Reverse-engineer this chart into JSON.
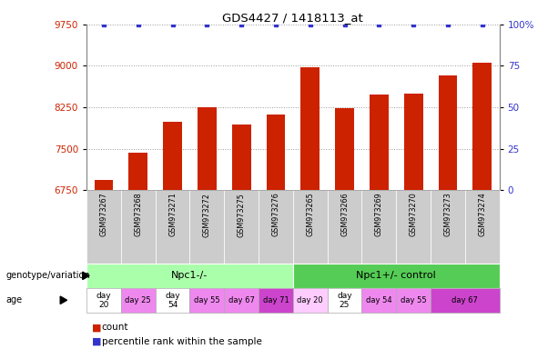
{
  "title": "GDS4427 / 1418113_at",
  "samples": [
    "GSM973267",
    "GSM973268",
    "GSM973271",
    "GSM973272",
    "GSM973275",
    "GSM973276",
    "GSM973265",
    "GSM973266",
    "GSM973269",
    "GSM973270",
    "GSM973273",
    "GSM973274"
  ],
  "counts": [
    6930,
    7430,
    7980,
    8250,
    7940,
    8120,
    8980,
    8230,
    8480,
    8490,
    8830,
    9050
  ],
  "percentile_ranks": [
    100,
    100,
    100,
    100,
    100,
    100,
    100,
    100,
    100,
    100,
    100,
    100
  ],
  "ylim_left": [
    6750,
    9750
  ],
  "ylim_right": [
    0,
    100
  ],
  "yticks_left": [
    6750,
    7500,
    8250,
    9000,
    9750
  ],
  "yticks_right": [
    0,
    25,
    50,
    75,
    100
  ],
  "ytick_labels_right": [
    "0",
    "25",
    "50",
    "75",
    "100%"
  ],
  "bar_color": "#cc2200",
  "percentile_color": "#3333cc",
  "bar_width": 0.55,
  "genotype_groups": [
    {
      "label": "Npc1-/-",
      "start": 0,
      "end": 6,
      "color": "#aaffaa"
    },
    {
      "label": "Npc1+/- control",
      "start": 6,
      "end": 12,
      "color": "#55cc55"
    }
  ],
  "xlabel_left": "genotype/variation",
  "xlabel_age": "age",
  "grid_color": "#999999",
  "tick_label_color_left": "#cc2200",
  "tick_label_color_right": "#3333cc",
  "background_color": "#ffffff",
  "xticklabel_bg": "#cccccc"
}
